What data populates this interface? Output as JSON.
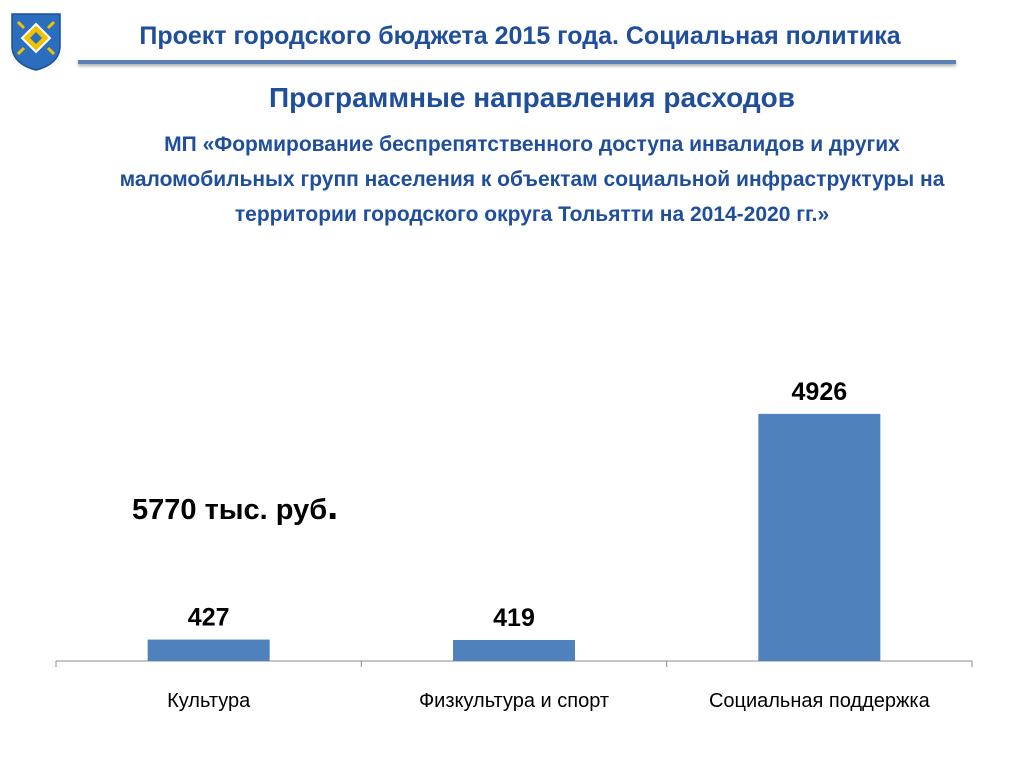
{
  "header": {
    "title": "Проект городского бюджета 2015 года. Социальная политика",
    "logo_icon": "city-coat-of-arms-icon",
    "accent_color": "#1f4e9c"
  },
  "section": {
    "title": "Программные направления расходов",
    "program_title": "МП «Формирование беспрепятственного доступа инвалидов и других маломобильных групп населения к объектам социальной инфраструктуры на территории городского округа Тольятти на 2014-2020 гг.»"
  },
  "total": {
    "value": "5770 тыс. руб",
    "dot": "."
  },
  "chart_data": {
    "type": "bar",
    "categories": [
      "Культура",
      "Физкультура и спорт",
      "Социальная поддержка"
    ],
    "values": [
      427,
      419,
      4926
    ],
    "data_labels": [
      "427",
      "419",
      "4926"
    ],
    "bar_color": "#4f81bd",
    "ylim": [
      0,
      6000
    ],
    "grid": false,
    "legend": "none"
  }
}
